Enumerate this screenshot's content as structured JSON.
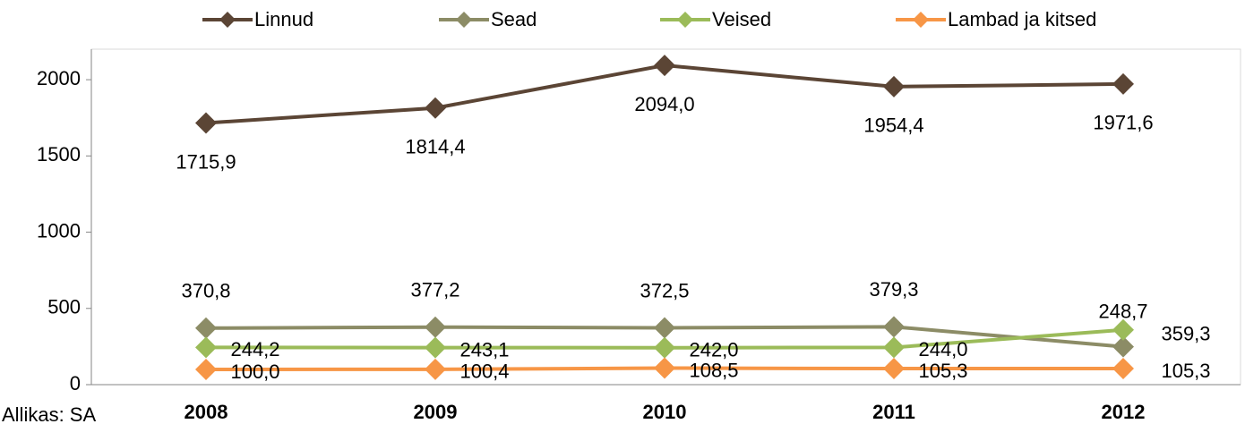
{
  "chart_data": {
    "type": "line",
    "categories": [
      "2008",
      "2009",
      "2010",
      "2011",
      "2012"
    ],
    "series": [
      {
        "name": "Linnud",
        "color": "#5b4535",
        "values": [
          1715.9,
          1814.4,
          2094.0,
          1954.4,
          1971.6
        ],
        "value_labels": [
          "1715,9",
          "1814,4",
          "2094,0",
          "1954,4",
          "1971,6"
        ]
      },
      {
        "name": "Sead",
        "color": "#8c8c66",
        "values": [
          370.8,
          377.2,
          372.5,
          379.3,
          248.7
        ],
        "value_labels": [
          "370,8",
          "377,2",
          "372,5",
          "379,3",
          "248,7"
        ]
      },
      {
        "name": "Veised",
        "color": "#9bbb59",
        "values": [
          244.2,
          243.1,
          242.0,
          244.0,
          359.3
        ],
        "value_labels": [
          "244,2",
          "243,1",
          "242,0",
          "244,0",
          "359,3"
        ]
      },
      {
        "name": "Lambad ja kitsed",
        "color": "#f79646",
        "values": [
          100.0,
          100.4,
          108.5,
          105.3,
          105.3
        ],
        "value_labels": [
          "100,0",
          "100,4",
          "108,5",
          "105,3",
          "105,3"
        ]
      }
    ],
    "ylim": [
      0,
      2200
    ],
    "yticks": [
      0,
      500,
      1000,
      1500,
      2000
    ],
    "grid": false,
    "legend": "top",
    "source": "Allikas: SA"
  }
}
